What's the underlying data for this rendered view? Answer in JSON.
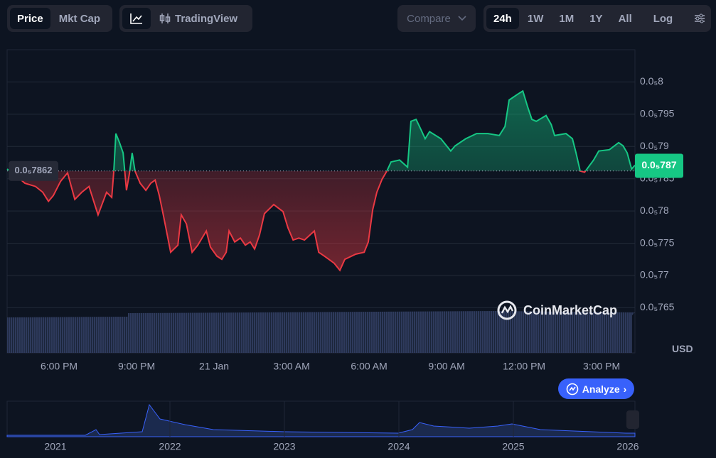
{
  "ui": {
    "toggle": [
      "Price",
      "Mkt Cap"
    ],
    "tradingview": "TradingView",
    "compare": "Compare",
    "ranges": [
      "24h",
      "1W",
      "1M",
      "1Y",
      "All"
    ],
    "log": "Log",
    "watermark": "CoinMarketCap",
    "currency": "USD",
    "analyze": "Analyze",
    "navigator_years": [
      "2021",
      "2022",
      "2023",
      "2024",
      "2025",
      "2026"
    ]
  },
  "chart_data": {
    "type": "line",
    "x": [
      15.99,
      16.27,
      16.68,
      17.09,
      17.37,
      17.59,
      17.78,
      18.06,
      18.33,
      18.61,
      18.88,
      19.16,
      19.51,
      19.84,
      20.04,
      20.12,
      20.2,
      20.34,
      20.48,
      20.61,
      20.72,
      20.83,
      20.94,
      21.14,
      21.36,
      21.55,
      21.72,
      21.88,
      22.05,
      22.32,
      22.6,
      22.73,
      22.93,
      23.15,
      23.37,
      23.7,
      23.86,
      24.11,
      24.3,
      24.47,
      24.58,
      24.8,
      25.02,
      25.21,
      25.4,
      25.57,
      25.76,
      25.95,
      26.31,
      26.67,
      26.86,
      27.06,
      27.28,
      27.5,
      27.88,
      28.05,
      28.27,
      28.65,
      28.87,
      29.06,
      29.48,
      29.81,
      29.97,
      30.14,
      30.3,
      30.5,
      30.69,
      30.85,
      31.18,
      31.49,
      31.62,
      31.82,
      32.01,
      32.17,
      32.34,
      32.78,
      33.16,
      33.33,
      33.74,
      34.16,
      34.6,
      35.04,
      35.26,
      35.42,
      35.75,
      35.95,
      36.14,
      36.3,
      36.47,
      36.85,
      37.05,
      37.18,
      37.62,
      37.87,
      38.01,
      38.17,
      38.34,
      38.69,
      38.89,
      39.3,
      39.66,
      39.83,
      39.99,
      40.16,
      40.29
    ],
    "series": [
      {
        "values": [
          7.865e-06,
          7.857e-06,
          7.843e-06,
          7.838e-06,
          7.829e-06,
          7.815e-06,
          7.824e-06,
          7.846e-06,
          7.859e-06,
          7.818e-06,
          7.829e-06,
          7.838e-06,
          7.794e-06,
          7.829e-06,
          7.821e-06,
          7.862e-06,
          7.92e-06,
          7.906e-06,
          7.89e-06,
          7.832e-06,
          7.857e-06,
          7.89e-06,
          7.862e-06,
          7.843e-06,
          7.832e-06,
          7.843e-06,
          7.848e-06,
          7.824e-06,
          7.791e-06,
          7.736e-06,
          7.747e-06,
          7.794e-06,
          7.78e-06,
          7.736e-06,
          7.747e-06,
          7.769e-06,
          7.744e-06,
          7.73e-06,
          7.725e-06,
          7.736e-06,
          7.769e-06,
          7.752e-06,
          7.758e-06,
          7.747e-06,
          7.752e-06,
          7.741e-06,
          7.763e-06,
          7.796e-06,
          7.81e-06,
          7.799e-06,
          7.774e-06,
          7.755e-06,
          7.758e-06,
          7.755e-06,
          7.769e-06,
          7.736e-06,
          7.73e-06,
          7.719e-06,
          7.708e-06,
          7.725e-06,
          7.733e-06,
          7.736e-06,
          7.752e-06,
          7.802e-06,
          7.829e-06,
          7.849e-06,
          7.862e-06,
          7.876e-06,
          7.879e-06,
          7.868e-06,
          7.939e-06,
          7.942e-06,
          7.926e-06,
          7.912e-06,
          7.923e-06,
          7.912e-06,
          7.893e-06,
          7.901e-06,
          7.912e-06,
          7.92e-06,
          7.92e-06,
          7.917e-06,
          7.931e-06,
          7.972e-06,
          7.981e-06,
          7.986e-06,
          7.961e-06,
          7.942e-06,
          7.939e-06,
          7.948e-06,
          7.934e-06,
          7.917e-06,
          7.92e-06,
          7.912e-06,
          7.89e-06,
          7.862e-06,
          7.86e-06,
          7.879e-06,
          7.893e-06,
          7.895e-06,
          7.906e-06,
          7.901e-06,
          7.89e-06,
          7.865e-06,
          7.871e-06
        ]
      }
    ],
    "xlim": [
      15.99,
      40.29
    ],
    "xticks": [
      {
        "value": 18,
        "label": "6:00 PM"
      },
      {
        "value": 21,
        "label": "9:00 PM"
      },
      {
        "value": 24,
        "label": "21 Jan"
      },
      {
        "value": 27,
        "label": "3:00 AM"
      },
      {
        "value": 30,
        "label": "6:00 AM"
      },
      {
        "value": 33,
        "label": "9:00 AM"
      },
      {
        "value": 36,
        "label": "12:00 PM"
      },
      {
        "value": 39,
        "label": "3:00 PM"
      }
    ],
    "ylim": [
      7.58e-06,
      8.05e-06
    ],
    "yticks": [
      {
        "value": 8e-06,
        "label": "0.0₅8"
      },
      {
        "value": 7.95e-06,
        "label": "0.0₅795"
      },
      {
        "value": 7.9e-06,
        "label": "0.0₅79"
      },
      {
        "value": 7.85e-06,
        "label": "0.0₅785"
      },
      {
        "value": 7.8e-06,
        "label": "0.0₅78"
      },
      {
        "value": 7.75e-06,
        "label": "0.0₅775"
      },
      {
        "value": 7.7e-06,
        "label": "0.0₅77"
      },
      {
        "value": 7.65e-06,
        "label": "0.0₅765"
      }
    ],
    "reference": {
      "value": 7.862e-06,
      "label": "0.0₅7862"
    },
    "last_price": {
      "value": 7.87e-06,
      "label": "0.0₅787"
    },
    "colors": {
      "up": "#16c784",
      "down": "#ea3943"
    },
    "grid": true
  }
}
